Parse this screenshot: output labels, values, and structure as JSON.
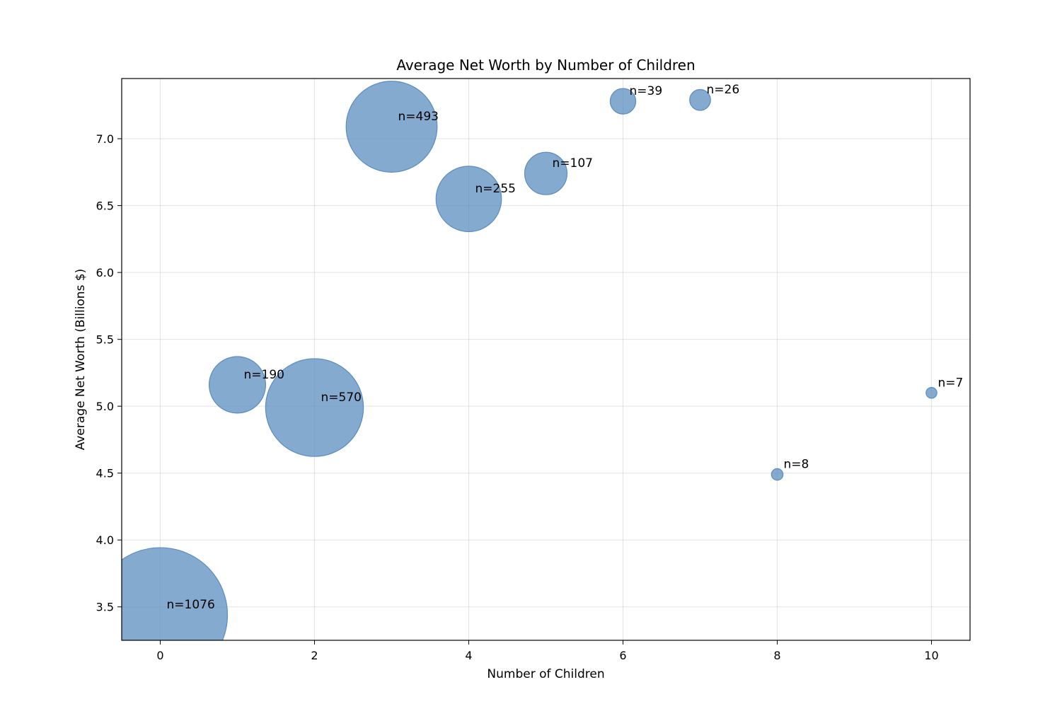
{
  "chart_data": {
    "type": "scatter",
    "title": "Average Net Worth by Number of Children",
    "xlabel": "Number of Children",
    "ylabel": "Average Net Worth (Billions $)",
    "xlim": [
      -0.5,
      10.5
    ],
    "ylim": [
      3.25,
      7.45
    ],
    "xticks": [
      0,
      2,
      4,
      6,
      8,
      10
    ],
    "yticks": [
      3.5,
      4.0,
      4.5,
      5.0,
      5.5,
      6.0,
      6.5,
      7.0
    ],
    "grid": true,
    "bubble_color": "#5b8dbf",
    "points": [
      {
        "x": 0,
        "y": 3.44,
        "n": 1076,
        "label": "n=1076"
      },
      {
        "x": 1,
        "y": 5.16,
        "n": 190,
        "label": "n=190"
      },
      {
        "x": 2,
        "y": 4.99,
        "n": 570,
        "label": "n=570"
      },
      {
        "x": 3,
        "y": 7.09,
        "n": 493,
        "label": "n=493"
      },
      {
        "x": 4,
        "y": 6.55,
        "n": 255,
        "label": "n=255"
      },
      {
        "x": 5,
        "y": 6.74,
        "n": 107,
        "label": "n=107"
      },
      {
        "x": 6,
        "y": 7.28,
        "n": 39,
        "label": "n=39"
      },
      {
        "x": 7,
        "y": 7.29,
        "n": 26,
        "label": "n=26"
      },
      {
        "x": 8,
        "y": 4.49,
        "n": 8,
        "label": "n=8"
      },
      {
        "x": 10,
        "y": 5.1,
        "n": 7,
        "label": "n=7"
      }
    ]
  }
}
